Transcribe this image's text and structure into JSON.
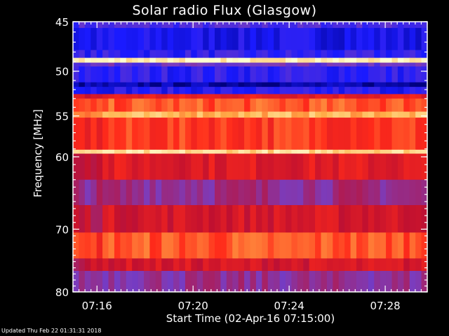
{
  "chart_data": {
    "type": "heatmap",
    "title": "Solar radio Flux (Glasgow)",
    "xlabel": "Start Time (02-Apr-16 07:15:00)",
    "ylabel": "Frequency [MHz]",
    "x_ticks": [
      "07:16",
      "07:20",
      "07:24",
      "07:28"
    ],
    "x_tick_minutes": [
      16,
      20,
      24,
      28
    ],
    "xlim_minutes": [
      15.0,
      29.75
    ],
    "y_ticks": [
      45,
      50,
      55,
      60,
      70,
      80
    ],
    "ylim": [
      45,
      80
    ],
    "y_scale": "log",
    "colormap": [
      "#000080",
      "#1a1aff",
      "#7a3dbf",
      "#c01030",
      "#ff2a1a",
      "#ffb24a",
      "#ffffd0"
    ],
    "bands": [
      {
        "from": 45.0,
        "to": 45.6,
        "level": 0.25
      },
      {
        "from": 45.6,
        "to": 47.8,
        "level": 0.15
      },
      {
        "from": 47.8,
        "to": 48.6,
        "level": 0.2
      },
      {
        "from": 48.6,
        "to": 49.1,
        "level": 0.97
      },
      {
        "from": 49.1,
        "to": 49.5,
        "level": 0.3
      },
      {
        "from": 49.5,
        "to": 51.2,
        "level": 0.2
      },
      {
        "from": 51.2,
        "to": 51.7,
        "level": 0.05
      },
      {
        "from": 51.7,
        "to": 52.5,
        "level": 0.18
      },
      {
        "from": 52.5,
        "to": 53.0,
        "level": 0.6
      },
      {
        "from": 53.0,
        "to": 54.5,
        "level": 0.72
      },
      {
        "from": 54.5,
        "to": 55.2,
        "level": 0.85
      },
      {
        "from": 55.2,
        "to": 59.1,
        "level": 0.68
      },
      {
        "from": 59.1,
        "to": 59.6,
        "level": 0.92
      },
      {
        "from": 59.6,
        "to": 63.0,
        "level": 0.58
      },
      {
        "from": 63.0,
        "to": 66.5,
        "level": 0.4
      },
      {
        "from": 66.5,
        "to": 70.5,
        "level": 0.55
      },
      {
        "from": 70.5,
        "to": 74.5,
        "level": 0.72
      },
      {
        "from": 74.5,
        "to": 76.5,
        "level": 0.55
      },
      {
        "from": 76.5,
        "to": 80.0,
        "level": 0.38
      }
    ],
    "early_segment_until_minutes": 16.0,
    "grid": false,
    "legend": "none"
  },
  "footer": "Updated Thu Feb 22 01:31:31 2018"
}
